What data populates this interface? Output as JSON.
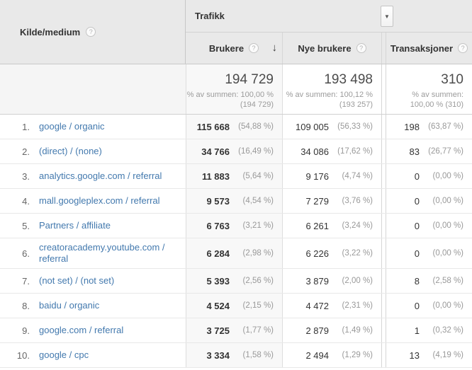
{
  "colors": {
    "link": "#4379ae",
    "header_bg": "#e9e9e9",
    "sorted_col_bg": "#f8f8f8"
  },
  "icons": {
    "help": "?",
    "sort_desc": "↓",
    "dropdown": "▼"
  },
  "header": {
    "dimension_label": "Kilde/medium",
    "metric_group": {
      "label": "Trafikk"
    },
    "columns": [
      {
        "id": "brukere",
        "label": "Brukere",
        "sorted": "desc"
      },
      {
        "id": "nye_brukere",
        "label": "Nye brukere"
      },
      {
        "id": "transaksjoner",
        "label": "Transaksjoner"
      }
    ]
  },
  "summary": {
    "brukere": {
      "value": "194 729",
      "pct_lines": [
        "% av summen: 100,00 %",
        "(194 729)"
      ]
    },
    "nye_brukere": {
      "value": "193 498",
      "pct_lines": [
        "% av summen: 100,12 %",
        "(193 257)"
      ]
    },
    "transaksjoner": {
      "value": "310",
      "pct_lines": [
        "% av summen:",
        "100,00 % (310)"
      ]
    }
  },
  "rows": [
    {
      "rank": "1.",
      "source": "google / organic",
      "brukere": "115 668",
      "brukere_pct": "(54,88 %)",
      "nye_brukere": "109 005",
      "nye_brukere_pct": "(56,33 %)",
      "transaksjoner": "198",
      "transaksjoner_pct": "(63,87 %)"
    },
    {
      "rank": "2.",
      "source": "(direct) / (none)",
      "brukere": "34 766",
      "brukere_pct": "(16,49 %)",
      "nye_brukere": "34 086",
      "nye_brukere_pct": "(17,62 %)",
      "transaksjoner": "83",
      "transaksjoner_pct": "(26,77 %)"
    },
    {
      "rank": "3.",
      "source": "analytics.google.com / referral",
      "brukere": "11 883",
      "brukere_pct": "(5,64 %)",
      "nye_brukere": "9 176",
      "nye_brukere_pct": "(4,74 %)",
      "transaksjoner": "0",
      "transaksjoner_pct": "(0,00 %)"
    },
    {
      "rank": "4.",
      "source": "mall.googleplex.com / referral",
      "brukere": "9 573",
      "brukere_pct": "(4,54 %)",
      "nye_brukere": "7 279",
      "nye_brukere_pct": "(3,76 %)",
      "transaksjoner": "0",
      "transaksjoner_pct": "(0,00 %)"
    },
    {
      "rank": "5.",
      "source": "Partners / affiliate",
      "brukere": "6 763",
      "brukere_pct": "(3,21 %)",
      "nye_brukere": "6 261",
      "nye_brukere_pct": "(3,24 %)",
      "transaksjoner": "0",
      "transaksjoner_pct": "(0,00 %)"
    },
    {
      "rank": "6.",
      "source": "creatoracademy.youtube.com / referral",
      "brukere": "6 284",
      "brukere_pct": "(2,98 %)",
      "nye_brukere": "6 226",
      "nye_brukere_pct": "(3,22 %)",
      "transaksjoner": "0",
      "transaksjoner_pct": "(0,00 %)"
    },
    {
      "rank": "7.",
      "source": "(not set) / (not set)",
      "brukere": "5 393",
      "brukere_pct": "(2,56 %)",
      "nye_brukere": "3 879",
      "nye_brukere_pct": "(2,00 %)",
      "transaksjoner": "8",
      "transaksjoner_pct": "(2,58 %)"
    },
    {
      "rank": "8.",
      "source": "baidu / organic",
      "brukere": "4 524",
      "brukere_pct": "(2,15 %)",
      "nye_brukere": "4 472",
      "nye_brukere_pct": "(2,31 %)",
      "transaksjoner": "0",
      "transaksjoner_pct": "(0,00 %)"
    },
    {
      "rank": "9.",
      "source": "google.com / referral",
      "brukere": "3 725",
      "brukere_pct": "(1,77 %)",
      "nye_brukere": "2 879",
      "nye_brukere_pct": "(1,49 %)",
      "transaksjoner": "1",
      "transaksjoner_pct": "(0,32 %)"
    },
    {
      "rank": "10.",
      "source": "google / cpc",
      "brukere": "3 334",
      "brukere_pct": "(1,58 %)",
      "nye_brukere": "2 494",
      "nye_brukere_pct": "(1,29 %)",
      "transaksjoner": "13",
      "transaksjoner_pct": "(4,19 %)"
    }
  ]
}
